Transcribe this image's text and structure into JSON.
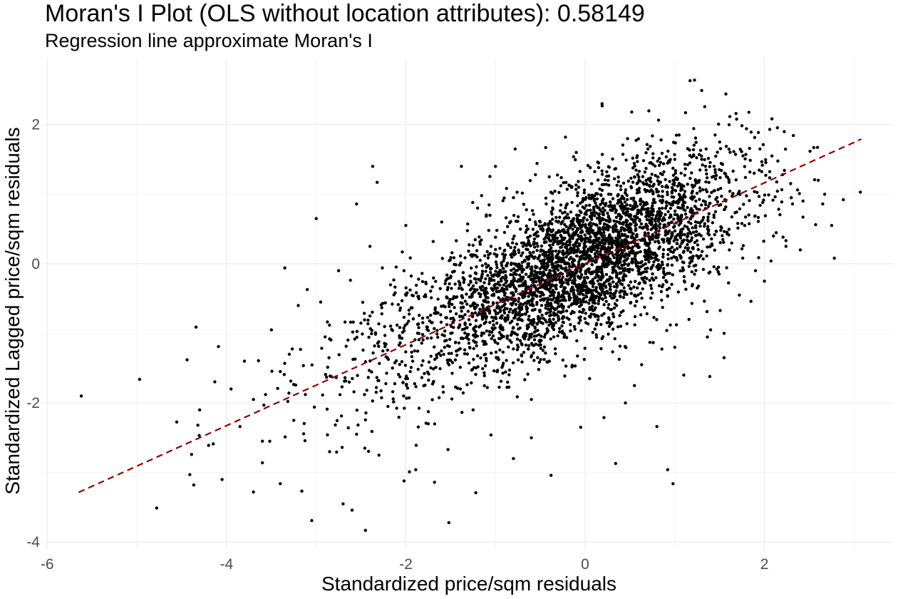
{
  "chart_data": {
    "type": "scatter",
    "title": "Moran's I Plot (OLS without location attributes): 0.58149",
    "subtitle": "Regression line approximate Moran's I",
    "xlabel": "Standardized price/sqm residuals",
    "ylabel": "Standardized Lagged price/sqm residuals",
    "xlim": [
      -6.05,
      3.45
    ],
    "ylim": [
      -4.1,
      2.95
    ],
    "x_ticks": [
      -6,
      -4,
      -2,
      0,
      2
    ],
    "y_ticks": [
      -4,
      -2,
      0,
      2
    ],
    "x_tick_labels": [
      "-6",
      "-4",
      "-2",
      "0",
      "2"
    ],
    "y_tick_labels": [
      "-4",
      "-2",
      "0",
      "2"
    ],
    "grid": true,
    "point_color": "#000000",
    "line_color": "#8b0000",
    "regression_line": {
      "slope": 0.58149,
      "intercept": 0.0,
      "x_range": [
        -5.65,
        3.08
      ]
    },
    "points": [
      [
        -5.62,
        -1.9
      ],
      [
        -4.97,
        -1.66
      ],
      [
        -4.78,
        -3.51
      ],
      [
        -4.44,
        -1.38
      ],
      [
        -4.34,
        -0.91
      ],
      [
        -4.09,
        -1.19
      ],
      [
        -4.05,
        -3.1
      ],
      [
        -3.35,
        -0.06
      ],
      [
        -3.0,
        0.65
      ],
      [
        -2.55,
        0.86
      ],
      [
        -2.37,
        1.4
      ],
      [
        -2.32,
        1.17
      ],
      [
        -1.38,
        1.4
      ],
      [
        -1.0,
        1.4
      ],
      [
        -0.44,
        1.67
      ],
      [
        -0.22,
        1.82
      ],
      [
        0.19,
        2.27
      ],
      [
        0.52,
        2.18
      ],
      [
        1.17,
        2.63
      ],
      [
        1.22,
        2.64
      ],
      [
        1.3,
        2.49
      ],
      [
        1.57,
        2.44
      ],
      [
        1.12,
        2.17
      ],
      [
        1.8,
        1.94
      ],
      [
        2.55,
        1.67
      ],
      [
        3.07,
        1.03
      ],
      [
        2.88,
        0.92
      ],
      [
        2.65,
        0.86
      ],
      [
        2.78,
        0.08
      ],
      [
        2.43,
        0.67
      ],
      [
        2.24,
        0.25
      ],
      [
        1.85,
        -0.54
      ],
      [
        1.78,
        0.55
      ],
      [
        1.55,
        -1.35
      ],
      [
        1.39,
        -1.62
      ],
      [
        0.92,
        -2.96
      ],
      [
        0.98,
        -3.16
      ],
      [
        0.8,
        -2.34
      ],
      [
        0.34,
        -2.87
      ],
      [
        0.21,
        -2.21
      ],
      [
        -0.38,
        -3.04
      ],
      [
        -0.6,
        -2.5
      ],
      [
        -1.22,
        -3.29
      ],
      [
        -1.68,
        -3.14
      ],
      [
        -1.89,
        -2.96
      ],
      [
        -1.53,
        -2.67
      ],
      [
        -1.52,
        -3.72
      ],
      [
        -2.6,
        -3.54
      ],
      [
        -2.45,
        -3.83
      ],
      [
        -3.05,
        -3.69
      ],
      [
        -3.4,
        -3.16
      ],
      [
        -3.7,
        -3.28
      ],
      [
        -3.85,
        -2.34
      ],
      [
        -3.6,
        -2.86
      ],
      [
        -4.41,
        -3.03
      ],
      [
        -4.39,
        -2.74
      ],
      [
        -4.2,
        -2.61
      ],
      [
        -4.32,
        -2.32
      ],
      [
        -2.95,
        -0.55
      ],
      [
        -3.1,
        -0.37
      ],
      [
        -2.85,
        -2.7
      ],
      [
        -3.02,
        -2.06
      ],
      [
        -2.7,
        -3.45
      ],
      [
        -2.3,
        -2.75
      ],
      [
        -2.02,
        -3.12
      ],
      [
        -1.96,
        -2.99
      ],
      [
        -1.05,
        -2.46
      ],
      [
        -0.8,
        -2.8
      ],
      [
        0.05,
        -1.65
      ],
      [
        0.45,
        -2.0
      ],
      [
        0.63,
        -1.45
      ],
      [
        1.0,
        -1.2
      ],
      [
        1.4,
        -0.95
      ],
      [
        1.72,
        -0.45
      ],
      [
        1.9,
        -0.1
      ],
      [
        2.1,
        0.4
      ],
      [
        2.3,
        0.95
      ],
      [
        2.6,
        1.2
      ],
      [
        1.95,
        1.65
      ],
      [
        1.45,
        1.85
      ],
      [
        1.0,
        1.5
      ],
      [
        0.7,
        1.65
      ],
      [
        0.15,
        1.45
      ],
      [
        -0.4,
        1.25
      ],
      [
        -0.8,
        0.95
      ],
      [
        -1.2,
        0.8
      ],
      [
        -1.6,
        0.6
      ],
      [
        -2.0,
        0.55
      ],
      [
        -2.4,
        0.25
      ],
      [
        -2.75,
        -0.1
      ],
      [
        -3.2,
        -0.6
      ],
      [
        -3.5,
        -0.95
      ],
      [
        -3.8,
        -1.4
      ],
      [
        -3.95,
        -1.8
      ],
      [
        -3.4,
        -1.55
      ],
      [
        -3.25,
        -2.25
      ],
      [
        -3.6,
        -2.55
      ],
      [
        -2.55,
        -2.45
      ],
      [
        -2.2,
        -2.05
      ],
      [
        -1.95,
        -1.55
      ],
      [
        -0.35,
        -1.05
      ],
      [
        0.35,
        -0.6
      ],
      [
        0.85,
        -0.4
      ],
      [
        1.25,
        -0.35
      ],
      [
        0.55,
        1.25
      ],
      [
        0.05,
        0.95
      ],
      [
        -0.5,
        0.6
      ],
      [
        -1.05,
        0.25
      ],
      [
        -1.5,
        -0.2
      ],
      [
        -2.0,
        -0.45
      ],
      [
        -2.4,
        -0.75
      ],
      [
        -2.9,
        -1.05
      ],
      [
        -3.3,
        -1.3
      ],
      [
        -3.7,
        -1.95
      ],
      [
        -4.3,
        -2.1
      ],
      [
        -1.75,
        -2.3
      ],
      [
        -1.25,
        -2.1
      ],
      [
        -0.6,
        -1.95
      ],
      [
        -0.05,
        -2.35
      ],
      [
        0.55,
        -1.75
      ],
      [
        1.1,
        -1.6
      ],
      [
        1.55,
        -1.0
      ],
      [
        2.0,
        -0.25
      ],
      [
        2.4,
        0.2
      ],
      [
        2.75,
        0.55
      ]
    ]
  }
}
